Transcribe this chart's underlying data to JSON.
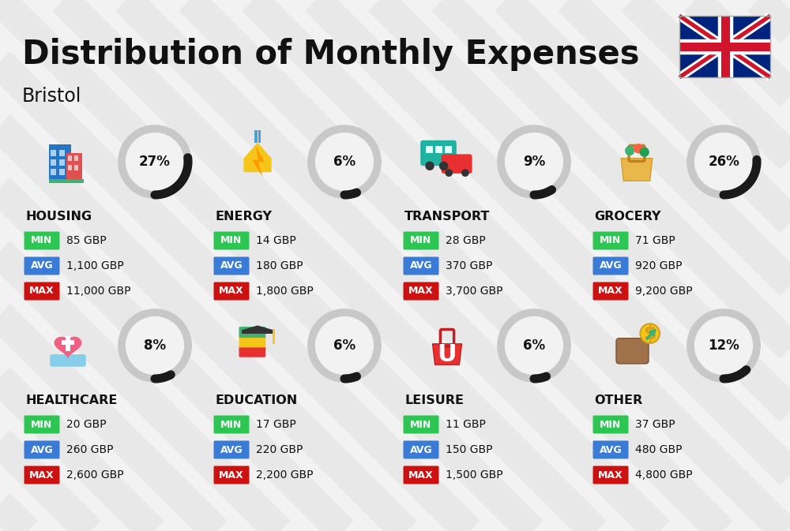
{
  "title": "Distribution of Monthly Expenses",
  "subtitle": "Bristol",
  "background_color": "#f2f2f2",
  "categories": [
    {
      "name": "HOUSING",
      "percent": 27,
      "min": "85 GBP",
      "avg": "1,100 GBP",
      "max": "11,000 GBP",
      "row": 0,
      "col": 0
    },
    {
      "name": "ENERGY",
      "percent": 6,
      "min": "14 GBP",
      "avg": "180 GBP",
      "max": "1,800 GBP",
      "row": 0,
      "col": 1
    },
    {
      "name": "TRANSPORT",
      "percent": 9,
      "min": "28 GBP",
      "avg": "370 GBP",
      "max": "3,700 GBP",
      "row": 0,
      "col": 2
    },
    {
      "name": "GROCERY",
      "percent": 26,
      "min": "71 GBP",
      "avg": "920 GBP",
      "max": "9,200 GBP",
      "row": 0,
      "col": 3
    },
    {
      "name": "HEALTHCARE",
      "percent": 8,
      "min": "20 GBP",
      "avg": "260 GBP",
      "max": "2,600 GBP",
      "row": 1,
      "col": 0
    },
    {
      "name": "EDUCATION",
      "percent": 6,
      "min": "17 GBP",
      "avg": "220 GBP",
      "max": "2,200 GBP",
      "row": 1,
      "col": 1
    },
    {
      "name": "LEISURE",
      "percent": 6,
      "min": "11 GBP",
      "avg": "150 GBP",
      "max": "1,500 GBP",
      "row": 1,
      "col": 2
    },
    {
      "name": "OTHER",
      "percent": 12,
      "min": "37 GBP",
      "avg": "480 GBP",
      "max": "4,800 GBP",
      "row": 1,
      "col": 3
    }
  ],
  "min_color": "#2dc653",
  "avg_color": "#3a7bd5",
  "max_color": "#cc1111",
  "text_color": "#111111",
  "stripe_color": "#e0e0e0",
  "circle_bg_color": "#c8c8c8",
  "arc_color": "#1a1a1a",
  "flag_blue": "#00247d",
  "flag_red": "#cf142b"
}
